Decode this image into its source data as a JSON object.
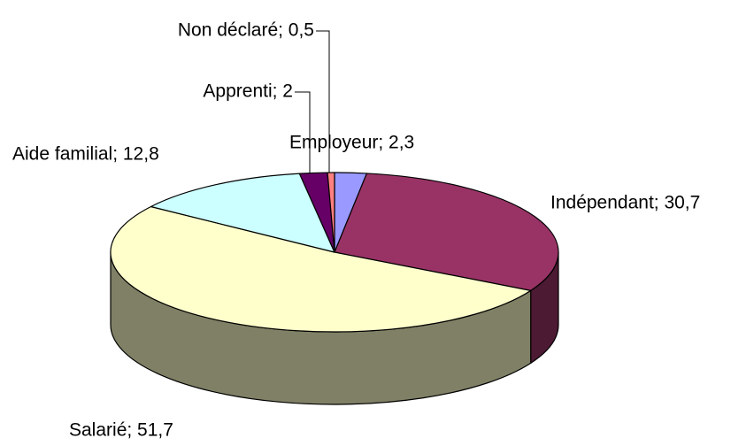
{
  "chart_data": {
    "type": "pie3d",
    "values": [
      2.3,
      30.7,
      51.7,
      12.8,
      2,
      0.5
    ],
    "value_labels": [
      "Employeur; 2,3",
      "Indépendant; 30,7",
      "Salarié; 51,7",
      "Aide familial; 12,8",
      "Apprenti; 2",
      "Non déclaré; 0,5"
    ],
    "colors": [
      "#9999ff",
      "#993366",
      "#ffffcc",
      "#ccffff",
      "#660066",
      "#ff8080"
    ]
  }
}
